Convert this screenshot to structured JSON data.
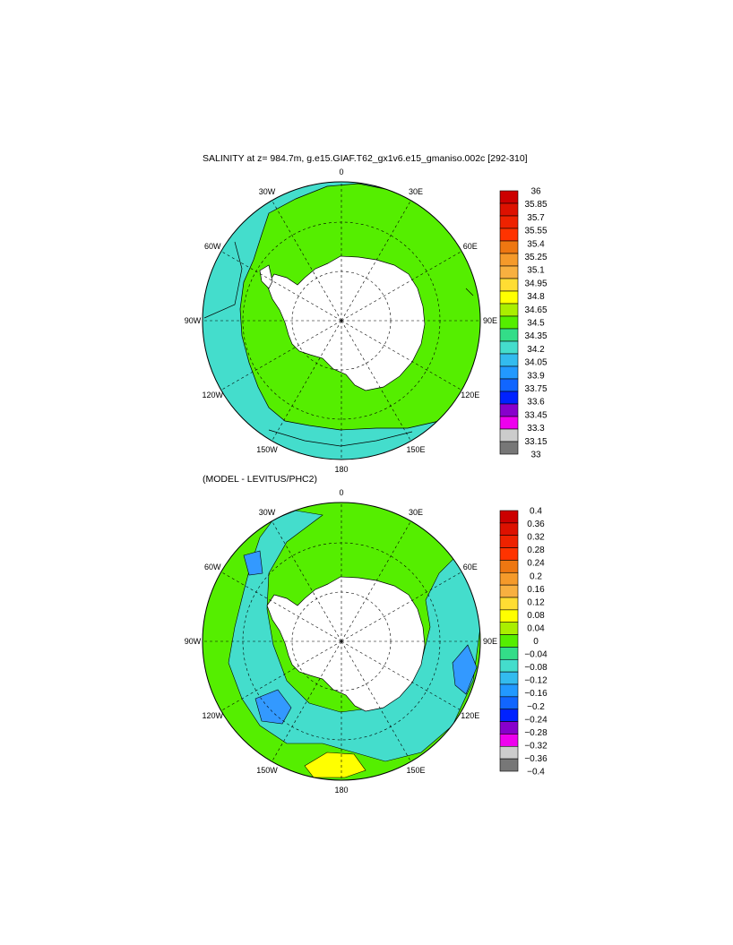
{
  "titles": {
    "top": "SALINITY at z= 984.7m, g.e15.GIAF.T62_gx1v6.e15_gmaniso.002c [292-310]",
    "bottom": "(MODEL - LEVITUS/PHC2)"
  },
  "longitude_labels": [
    "0",
    "30E",
    "60E",
    "90E",
    "120E",
    "150E",
    "180",
    "150W",
    "120W",
    "90W",
    "60W",
    "30W"
  ],
  "colors": {
    "land": "#ffffff",
    "coast": "#000000",
    "salinity_fill": "#55ee00",
    "salinity_fringe": "#44ddcc",
    "diff_fill_main": "#55ee00",
    "diff_fill_cyan": "#44ddcc",
    "diff_fill_blue": "#3399ff",
    "diff_fill_yellow": "#ffff00"
  },
  "chart_data": [
    {
      "type": "heatmap",
      "title": "SALINITY at z= 984.7m, g.e15.GIAF.T62_gx1v6.e15_gmaniso.002c [292-310]",
      "projection": "south-polar-stereographic",
      "colorbar": {
        "labels": [
          "36",
          "35.85",
          "35.7",
          "35.55",
          "35.4",
          "35.25",
          "35.1",
          "34.95",
          "34.8",
          "34.65",
          "34.5",
          "34.35",
          "34.2",
          "34.05",
          "33.9",
          "33.75",
          "33.6",
          "33.45",
          "33.3",
          "33.15",
          "33"
        ],
        "colors": [
          "#cc0000",
          "#dd1100",
          "#ee2200",
          "#ff3300",
          "#ee7711",
          "#f59a2a",
          "#f8b040",
          "#ffdd33",
          "#ffff00",
          "#aaee00",
          "#55ee00",
          "#33dd88",
          "#44ddcc",
          "#33bbee",
          "#2299ff",
          "#1166ff",
          "#0022ff",
          "#8800cc",
          "#ee00ee",
          "#cccccc",
          "#777777"
        ]
      }
    },
    {
      "type": "heatmap",
      "title": "(MODEL - LEVITUS/PHC2)",
      "projection": "south-polar-stereographic",
      "colorbar": {
        "labels": [
          "0.4",
          "0.36",
          "0.32",
          "0.28",
          "0.24",
          "0.2",
          "0.16",
          "0.12",
          "0.08",
          "0.04",
          "0",
          "−0.04",
          "−0.08",
          "−0.12",
          "−0.16",
          "−0.2",
          "−0.24",
          "−0.28",
          "−0.32",
          "−0.36",
          "−0.4"
        ],
        "colors": [
          "#cc0000",
          "#dd1100",
          "#ee2200",
          "#ff3300",
          "#ee7711",
          "#f59a2a",
          "#f8b040",
          "#ffdd33",
          "#ffff00",
          "#aaee00",
          "#55ee00",
          "#33dd88",
          "#44ddcc",
          "#33bbee",
          "#2299ff",
          "#1166ff",
          "#0022ff",
          "#8800cc",
          "#ee00ee",
          "#cccccc",
          "#777777"
        ]
      }
    }
  ]
}
